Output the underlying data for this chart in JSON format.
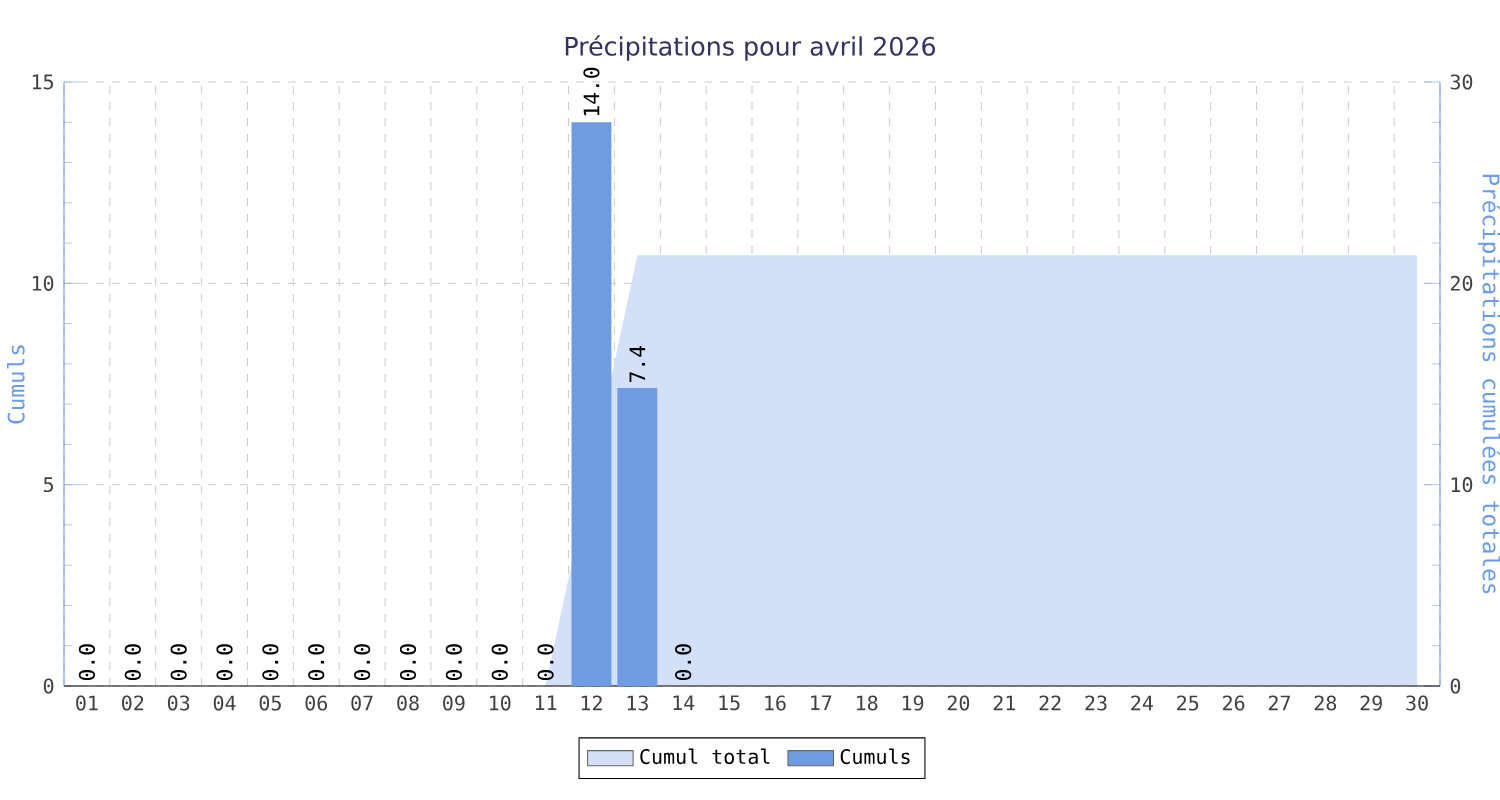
{
  "chart_data": {
    "type": "bar",
    "title": "Précipitations pour avril 2026",
    "ylabel": "Cumuls",
    "y2label": "Précipitations cumulées totales",
    "categories": [
      "01",
      "02",
      "03",
      "04",
      "05",
      "06",
      "07",
      "08",
      "09",
      "10",
      "11",
      "12",
      "13",
      "14",
      "15",
      "16",
      "17",
      "18",
      "19",
      "20",
      "21",
      "22",
      "23",
      "24",
      "25",
      "26",
      "27",
      "28",
      "29",
      "30"
    ],
    "series": [
      {
        "name": "Cumul total",
        "type": "area",
        "axis": "y2",
        "color": "#d3e0f8",
        "values": [
          0,
          0,
          0,
          0,
          0,
          0,
          0,
          0,
          0,
          0,
          0,
          null,
          21.4,
          21.4,
          21.4,
          21.4,
          21.4,
          21.4,
          21.4,
          21.4,
          21.4,
          21.4,
          21.4,
          21.4,
          21.4,
          21.4,
          21.4,
          21.4,
          21.4,
          21.4
        ]
      },
      {
        "name": "Cumuls",
        "color": "#6f9be0",
        "values": [
          0,
          0,
          0,
          0,
          0,
          0,
          0,
          0,
          0,
          0,
          0,
          14.0,
          7.4,
          0,
          null,
          null,
          null,
          null,
          null,
          null,
          null,
          null,
          null,
          null,
          null,
          null,
          null,
          null,
          null,
          null
        ],
        "value_labels": [
          "0.0",
          "0.0",
          "0.0",
          "0.0",
          "0.0",
          "0.0",
          "0.0",
          "0.0",
          "0.0",
          "0.0",
          "0.0",
          "14.0",
          "7.4",
          "0.0",
          null,
          null,
          null,
          null,
          null,
          null,
          null,
          null,
          null,
          null,
          null,
          null,
          null,
          null,
          null,
          null
        ]
      }
    ],
    "ylim": [
      0,
      15
    ],
    "yticks": [
      0,
      5,
      10,
      15
    ],
    "y2lim": [
      0,
      30
    ],
    "y2ticks": [
      0,
      10,
      20,
      30
    ],
    "grid": true,
    "legend": "bottom"
  }
}
